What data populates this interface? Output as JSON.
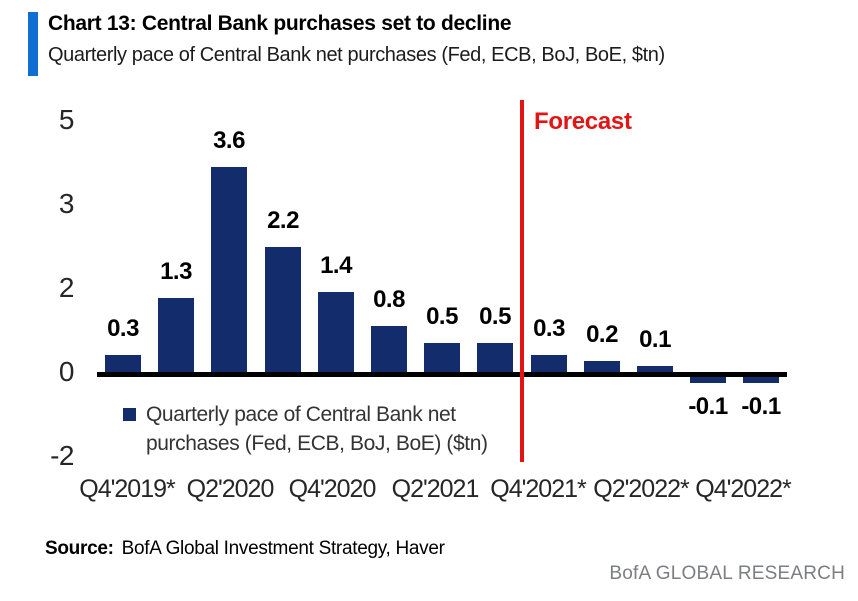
{
  "header": {
    "title": "Chart 13: Central Bank purchases set to decline",
    "subtitle": "Quarterly pace of Central Bank net purchases (Fed, ECB, BoJ, BoE, $tn)"
  },
  "chart_data": {
    "type": "bar",
    "values": [
      0.3,
      1.3,
      3.6,
      2.2,
      1.4,
      0.8,
      0.5,
      0.5,
      0.3,
      0.2,
      0.1,
      -0.1,
      -0.1
    ],
    "bar_labels": [
      "0.3",
      "1.3",
      "3.6",
      "2.2",
      "1.4",
      "0.8",
      "0.5",
      "0.5",
      "0.3",
      "0.2",
      "0.1",
      "-0.1",
      "-0.1"
    ],
    "x_tick_labels": [
      "Q4'2019*",
      "Q2'2020",
      "Q4'2020",
      "Q2'2021",
      "Q4'2021*",
      "Q2'2022*",
      "Q4'2022*"
    ],
    "y_tick_labels": [
      "5",
      "3",
      "2",
      "0",
      "-2"
    ],
    "ylim": [
      -2,
      5
    ],
    "grid": "off",
    "legend_position": "below-left-inside",
    "forecast_label": "Forecast",
    "forecast_line_after_bar_index": 7,
    "legend": {
      "lines": [
        "Quarterly pace of Central Bank net",
        "purchases (Fed, ECB, BoJ, BoE) ($tn)"
      ]
    }
  },
  "colors": {
    "bar": "#132c6b",
    "accent": "#0e6ed2",
    "forecast": "#e31414"
  },
  "footer": {
    "source_label": "Source:",
    "source_text": "BofA Global Investment Strategy, Haver",
    "brand": "BofA GLOBAL RESEARCH"
  }
}
